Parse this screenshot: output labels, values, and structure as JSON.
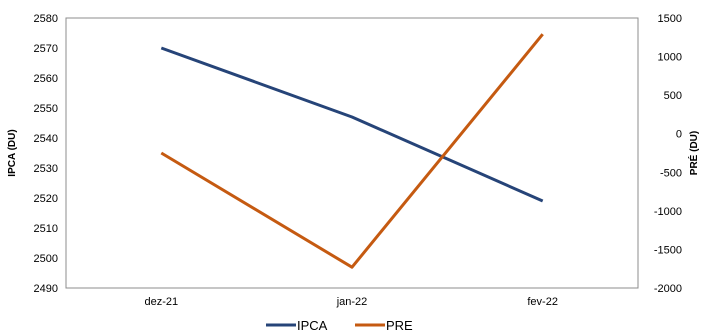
{
  "chart_data": {
    "type": "line",
    "categories": [
      "dez-21",
      "jan-22",
      "fev-22"
    ],
    "series": [
      {
        "name": "IPCA",
        "axis": "left",
        "color": "#264478",
        "values": [
          2570,
          2547,
          2519
        ]
      },
      {
        "name": "PRE",
        "axis": "right",
        "color": "#C55A11",
        "values": [
          -250,
          -1730,
          1290
        ]
      }
    ],
    "ylabel_left": "IPCA (DU)",
    "ylabel_right": "PRÉ (DU)",
    "ylim_left": [
      2490,
      2580
    ],
    "yticks_left": [
      2490,
      2500,
      2510,
      2520,
      2530,
      2540,
      2550,
      2560,
      2570,
      2580
    ],
    "ylim_right": [
      -2000,
      1500
    ],
    "yticks_right": [
      -2000,
      -1500,
      -1000,
      -500,
      0,
      500,
      1000,
      1500
    ],
    "grid": false,
    "legend_position": "bottom"
  }
}
